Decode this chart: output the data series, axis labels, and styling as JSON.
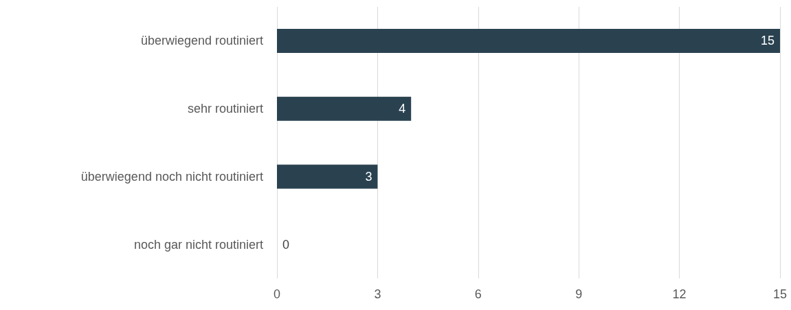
{
  "chart_data": {
    "type": "bar",
    "orientation": "horizontal",
    "categories": [
      "überwiegend routiniert",
      "sehr routiniert",
      "überwiegend noch nicht routiniert",
      "noch gar nicht routiniert"
    ],
    "values": [
      15,
      4,
      3,
      0
    ],
    "color": "#2a4250",
    "xlim": [
      0,
      15
    ],
    "xticks": [
      0,
      3,
      6,
      9,
      12,
      15
    ],
    "grid": "x",
    "data_labels": true
  }
}
